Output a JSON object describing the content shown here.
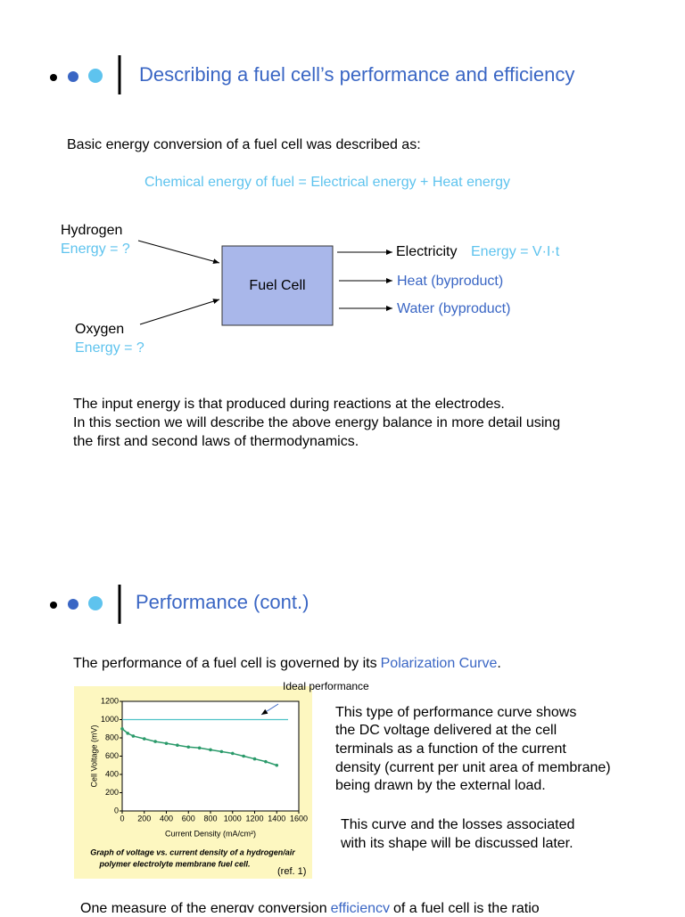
{
  "slides": [
    {
      "title": "Describing a fuel cell’s performance and efficiency",
      "intro": "Basic energy conversion of a fuel cell was described as:",
      "equation": "Chemical energy of fuel = Electrical energy + Heat energy",
      "diagram": {
        "inputs": [
          {
            "label": "Hydrogen",
            "energy": "Energy = ?"
          },
          {
            "label": "Oxygen",
            "energy": "Energy = ?"
          }
        ],
        "box": "Fuel Cell",
        "outputs": [
          {
            "label": "Electricity",
            "note": "Energy = V·I·t"
          },
          {
            "label": "Heat (byproduct)"
          },
          {
            "label": "Water (byproduct)"
          }
        ]
      },
      "paragraph": [
        "The input energy is that produced during reactions at the electrodes.",
        "In this section we will describe the above energy balance in more detail using",
        "the first and second laws of thermodynamics."
      ]
    },
    {
      "title": "Performance (cont.)",
      "intro": {
        "before": "The performance of a fuel cell is governed by its",
        "link": "Polarization Curve",
        "after": "."
      },
      "description": [
        "This type of performance curve shows",
        "the DC voltage delivered at the cell",
        "terminals as a function of the current",
        "density (current per unit area of membrane)",
        "being drawn by the external load."
      ],
      "note": [
        "This curve and the losses associated",
        "with its shape will be discussed later."
      ],
      "footer": {
        "before": "One measure of the energy conversion",
        "link": "efficiency",
        "after": "of a fuel cell is the ratio"
      }
    }
  ],
  "chart_data": {
    "type": "line",
    "x_label": "Current Density (mA/cm²)",
    "y_label": "Cell Voltage (mV)",
    "caption": [
      "Graph of voltage vs. current density of a hydrogen/air",
      "polymer electrolyte membrane fuel cell."
    ],
    "source": "(ref. 1)",
    "reference": {
      "value": 1000,
      "label": "Ideal performance",
      "color": "#4fc3c8"
    },
    "x": [
      0,
      50,
      100,
      200,
      300,
      400,
      500,
      600,
      700,
      800,
      900,
      1000,
      1100,
      1200,
      1300,
      1400
    ],
    "series": [
      {
        "color": "#2a9a6a",
        "values": [
          900,
          850,
          820,
          790,
          760,
          740,
          720,
          700,
          690,
          670,
          650,
          630,
          600,
          570,
          540,
          500
        ]
      }
    ],
    "xlim": [
      0,
      1600
    ],
    "xticks": [
      0,
      200,
      400,
      600,
      800,
      1000,
      1200,
      1400,
      1600
    ],
    "ylim": [
      0,
      1200
    ],
    "yticks": [
      0,
      200,
      400,
      600,
      800,
      1000,
      1200
    ]
  }
}
